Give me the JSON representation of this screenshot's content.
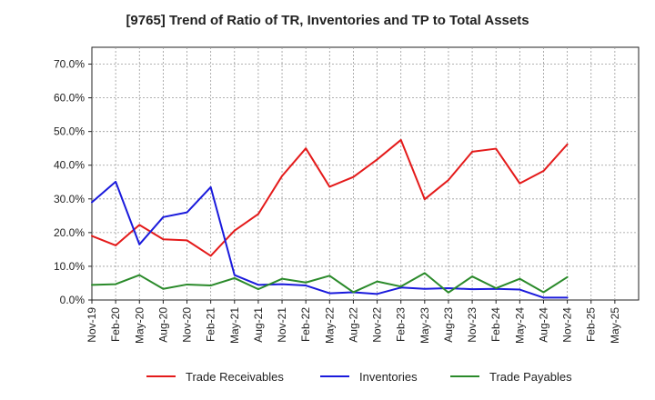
{
  "chart_data": {
    "type": "line",
    "title": "[9765]  Trend of Ratio of TR, Inventories and TP to Total Assets",
    "xlabel": "",
    "ylabel": "",
    "ylim": [
      0,
      75
    ],
    "y_ticks": [
      0,
      10,
      20,
      30,
      40,
      50,
      60,
      70
    ],
    "y_tick_labels": [
      "0.0%",
      "10.0%",
      "20.0%",
      "30.0%",
      "40.0%",
      "50.0%",
      "60.0%",
      "70.0%"
    ],
    "grid": true,
    "legend_position": "bottom",
    "x": [
      "Nov-19",
      "Feb-20",
      "May-20",
      "Aug-20",
      "Nov-20",
      "Feb-21",
      "May-21",
      "Aug-21",
      "Nov-21",
      "Feb-22",
      "May-22",
      "Aug-22",
      "Nov-22",
      "Feb-23",
      "May-23",
      "Aug-23",
      "Nov-23",
      "Feb-24",
      "May-24",
      "Aug-24",
      "Nov-24",
      "Feb-25",
      "May-25"
    ],
    "series": [
      {
        "name": "Trade Receivables",
        "color": "#e41a1a",
        "values": [
          19.0,
          16.2,
          22.3,
          18.0,
          17.7,
          13.1,
          20.6,
          25.5,
          36.8,
          45.0,
          33.6,
          36.5,
          41.7,
          47.5,
          29.9,
          35.6,
          44.0,
          44.9,
          34.6,
          38.3,
          46.2,
          null,
          null
        ]
      },
      {
        "name": "Inventories",
        "color": "#1a1adc",
        "values": [
          29.0,
          35.1,
          16.5,
          24.6,
          26.0,
          33.5,
          7.4,
          4.5,
          4.7,
          4.3,
          2.0,
          2.3,
          1.8,
          3.7,
          3.3,
          3.5,
          3.2,
          3.3,
          3.1,
          0.7,
          0.7,
          null,
          null
        ]
      },
      {
        "name": "Trade Payables",
        "color": "#2a8a2a",
        "values": [
          4.5,
          4.7,
          7.4,
          3.3,
          4.6,
          4.3,
          6.5,
          3.2,
          6.3,
          5.2,
          7.2,
          2.3,
          5.5,
          4.0,
          8.0,
          2.2,
          7.0,
          3.5,
          6.3,
          2.3,
          6.8,
          null,
          null
        ]
      }
    ]
  }
}
